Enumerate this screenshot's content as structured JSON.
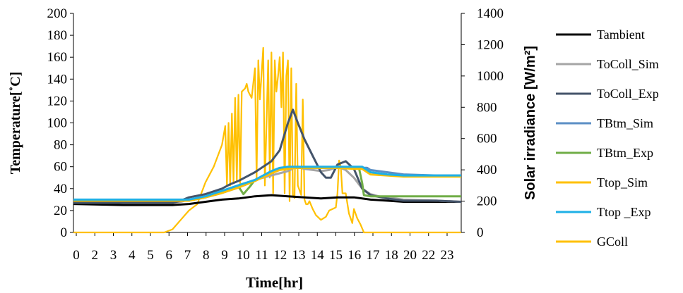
{
  "chart_data": {
    "type": "line",
    "xlabel": "Time[hr]",
    "ylabel": "Temperature[˚C]",
    "y2label": "Solar irradiance [W/m²]",
    "x_ticks": [
      "0",
      "2",
      "3",
      "4",
      "5",
      "6",
      "7",
      "8",
      "9",
      "10",
      "11",
      "12",
      "13",
      "14",
      "15",
      "16",
      "17",
      "18",
      "20",
      "22",
      "23"
    ],
    "xlim": [
      0,
      23.5
    ],
    "ylim": [
      0,
      200
    ],
    "y_ticks": [
      0,
      20,
      40,
      60,
      80,
      100,
      120,
      140,
      160,
      180,
      200
    ],
    "y2lim": [
      0,
      1400
    ],
    "y2_ticks": [
      0,
      200,
      400,
      600,
      800,
      1000,
      1200,
      1400
    ],
    "grid": false,
    "legend_position": "right",
    "series": [
      {
        "name": "Tambient",
        "color": "#000000",
        "axis": "left",
        "x": [
          0,
          3,
          6,
          7,
          8,
          9,
          10,
          11,
          12,
          13,
          14,
          15,
          16,
          17,
          18,
          19,
          20,
          21,
          22,
          23,
          23.5
        ],
        "y": [
          26,
          25,
          25,
          26,
          28,
          30,
          31,
          33,
          34,
          33,
          32,
          31,
          32,
          32,
          30,
          29,
          28,
          28,
          28,
          28,
          28
        ]
      },
      {
        "name": "ToColl_Sim",
        "color": "#a5a5a5",
        "axis": "left",
        "x": [
          0,
          6,
          6.5,
          7,
          8,
          9,
          9.5,
          10,
          11,
          12,
          12.5,
          13,
          13.5,
          14,
          15,
          15.5,
          16,
          16.5,
          17,
          17.5,
          18,
          18.5,
          19,
          20,
          22,
          23.5
        ],
        "y": [
          27,
          27,
          28,
          30,
          33,
          37,
          40,
          43,
          48,
          52,
          54,
          56,
          60,
          58,
          56,
          57,
          60,
          57,
          50,
          40,
          35,
          33,
          32,
          30,
          29,
          28
        ]
      },
      {
        "name": "ToColl_Exp",
        "color": "#44546a",
        "axis": "left",
        "x": [
          0,
          6,
          6.5,
          7,
          8,
          9,
          9.5,
          10,
          11,
          12,
          12.5,
          13,
          13.3,
          13.6,
          14,
          14.5,
          15,
          15.3,
          15.6,
          16,
          16.5,
          17,
          17.5,
          18,
          19,
          20,
          22,
          23.5
        ],
        "y": [
          27,
          27,
          29,
          32,
          35,
          40,
          44,
          47,
          55,
          65,
          75,
          100,
          112,
          100,
          85,
          70,
          55,
          50,
          50,
          62,
          65,
          58,
          40,
          34,
          31,
          29,
          29,
          28
        ]
      },
      {
        "name": "TBtm_Sim",
        "color": "#5b8fc5",
        "axis": "left",
        "x": [
          0,
          6,
          7,
          8,
          9,
          10,
          11,
          11.5,
          12,
          12.5,
          13,
          13.5,
          14,
          15,
          16,
          17,
          17.8,
          18,
          19,
          20,
          22,
          23.5
        ],
        "y": [
          29,
          29,
          29,
          32,
          36,
          41,
          47,
          51,
          55,
          58,
          59,
          59,
          59,
          59,
          59,
          59,
          59,
          57,
          55,
          53,
          52,
          52
        ]
      },
      {
        "name": "TBtm_Exp",
        "color": "#70ad47",
        "axis": "left",
        "x": [
          0,
          6,
          7,
          8,
          9,
          10,
          10.3,
          10.7,
          11,
          12,
          12.5,
          13,
          13.5,
          14,
          15,
          16,
          17,
          17.3,
          17.5,
          17.6,
          18,
          19,
          20,
          22,
          23.5
        ],
        "y": [
          29,
          29,
          29,
          32,
          37,
          42,
          35,
          42,
          48,
          55,
          58,
          59,
          59,
          59,
          59,
          59,
          59,
          59,
          45,
          34,
          33,
          33,
          33,
          33,
          33
        ]
      },
      {
        "name": "Ttop_Sim",
        "color": "#ffc000",
        "axis": "left",
        "x": [
          0,
          6,
          7,
          8,
          9,
          10,
          11,
          12,
          12.5,
          13,
          13.5,
          14,
          15,
          16,
          17,
          17.5,
          17.8,
          18,
          19,
          20,
          22,
          23.5
        ],
        "y": [
          29,
          29,
          29,
          32,
          36,
          41,
          47,
          54,
          57,
          58,
          59,
          59,
          59,
          59,
          58,
          58,
          55,
          53,
          52,
          51,
          51,
          51
        ]
      },
      {
        "name": "Ttop _Exp",
        "color": "#1eb0e6",
        "axis": "left",
        "x": [
          0,
          6,
          6.5,
          7,
          8,
          9,
          10,
          11,
          11.5,
          12,
          12.5,
          13,
          13.5,
          14,
          15,
          16,
          17,
          17.5,
          17.8,
          18,
          19,
          20,
          22,
          23.5
        ],
        "y": [
          30,
          30,
          30,
          30,
          33,
          38,
          43,
          48,
          52,
          56,
          59,
          60,
          60,
          60,
          60,
          60,
          60,
          60,
          57,
          55,
          53,
          52,
          52,
          52
        ]
      },
      {
        "name": "GColl",
        "color": "#ffc000",
        "axis": "right",
        "x": [
          0,
          5.5,
          6,
          6.5,
          7,
          7.5,
          8,
          8.5,
          9,
          9.2,
          9.3,
          9.4,
          9.5,
          9.6,
          9.7,
          9.8,
          9.9,
          10,
          10.1,
          10.2,
          10.4,
          10.5,
          10.6,
          10.8,
          11,
          11.1,
          11.2,
          11.3,
          11.5,
          11.6,
          11.8,
          11.9,
          12,
          12.1,
          12.2,
          12.3,
          12.4,
          12.5,
          12.6,
          12.7,
          12.8,
          12.9,
          13,
          13.1,
          13.2,
          13.3,
          13.4,
          13.5,
          13.6,
          13.8,
          13.9,
          14,
          14.1,
          14.2,
          14.3,
          14.5,
          14.7,
          15,
          15.3,
          15.5,
          15.7,
          15.9,
          16,
          16.1,
          16.2,
          16.3,
          16.5,
          16.7,
          16.9,
          17,
          17.2,
          17.4,
          17.6,
          18,
          18.5,
          23.5
        ],
        "y": [
          0,
          0,
          20,
          80,
          140,
          180,
          320,
          420,
          560,
          680,
          300,
          700,
          300,
          760,
          320,
          860,
          330,
          880,
          300,
          900,
          920,
          950,
          900,
          860,
          1050,
          350,
          1100,
          850,
          1180,
          300,
          1100,
          350,
          1150,
          250,
          1100,
          900,
          1000,
          1120,
          800,
          1150,
          250,
          1000,
          1100,
          200,
          1050,
          240,
          220,
          950,
          300,
          240,
          850,
          210,
          180,
          180,
          200,
          150,
          110,
          80,
          100,
          140,
          150,
          160,
          250,
          460,
          420,
          250,
          250,
          120,
          60,
          150,
          90,
          50,
          0,
          0,
          0,
          0
        ]
      }
    ]
  }
}
